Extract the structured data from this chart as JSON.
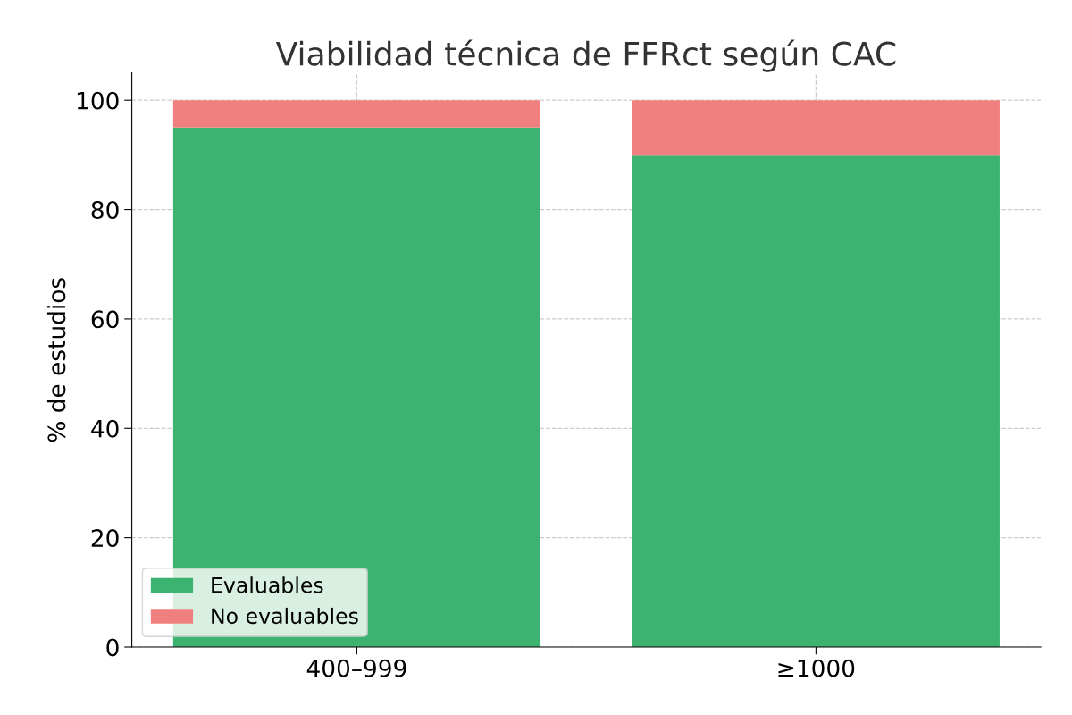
{
  "chart_data": {
    "type": "bar",
    "title": "Viabilidad técnica de FFRct según CAC",
    "ylabel": "% de estudios",
    "categories": [
      "400–999",
      "≥1000"
    ],
    "series": [
      {
        "name": "Evaluables",
        "color": "#3cb371",
        "values": [
          95,
          90
        ]
      },
      {
        "name": "No evaluables",
        "color": "#f08080",
        "values": [
          5,
          10
        ]
      }
    ],
    "stacked": true,
    "ylim": [
      0,
      105
    ],
    "yticks": [
      0,
      20,
      40,
      60,
      80,
      100
    ],
    "grid": true,
    "legend": "bottom left"
  }
}
